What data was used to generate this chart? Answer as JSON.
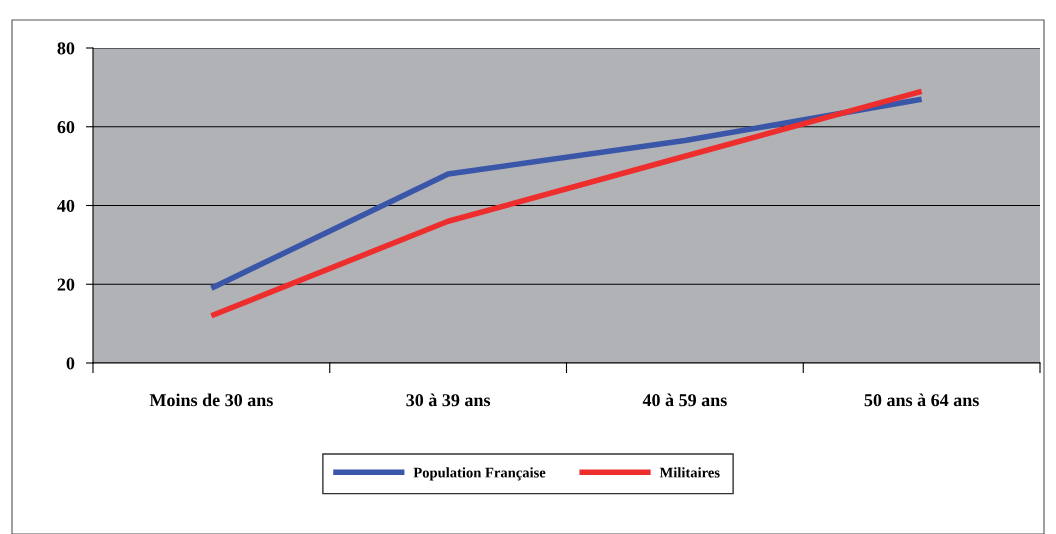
{
  "chart_data": {
    "type": "line",
    "categories": [
      "Moins de 30 ans",
      "30 à 39 ans",
      "40 à 59 ans",
      "50 ans à 64 ans"
    ],
    "series": [
      {
        "name": "Population Française",
        "color": "#3a56a8",
        "values": [
          19,
          48,
          56.5,
          67
        ]
      },
      {
        "name": "Militaires",
        "color": "#ee2d2d",
        "values": [
          12,
          36,
          52.5,
          69
        ]
      }
    ],
    "ylim": [
      0,
      80
    ],
    "yticks": [
      0,
      20,
      40,
      60,
      80
    ],
    "grid": "y",
    "legend": "bottom",
    "marker": "none",
    "line_style": "solid"
  }
}
